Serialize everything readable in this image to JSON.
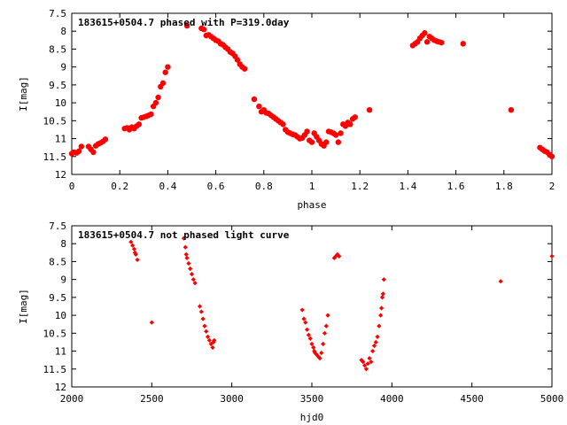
{
  "colors": {
    "marker": "#ff0000",
    "frame": "#000000",
    "background": "#ffffff"
  },
  "chart_data": [
    {
      "type": "scatter",
      "title": "183615+0504.7 phased with P=319.0day",
      "xlabel": "phase",
      "ylabel": "I[mag]",
      "xlim": [
        0,
        2
      ],
      "ylim": [
        12,
        7.5
      ],
      "y_inverted": true,
      "x_ticks": [
        "0",
        "0.2",
        "0.4",
        "0.6",
        "0.8",
        "1",
        "1.2",
        "1.4",
        "1.6",
        "1.8",
        "2"
      ],
      "y_ticks": [
        "7.5",
        "8",
        "8.5",
        "9",
        "9.5",
        "10",
        "10.5",
        "11",
        "11.5",
        "12"
      ],
      "grid": false,
      "legend": "none",
      "marker": "filled-circle-large",
      "series": [
        {
          "points": [
            [
              0.0,
              11.42
            ],
            [
              0.01,
              11.38
            ],
            [
              0.02,
              11.4
            ],
            [
              0.03,
              11.35
            ],
            [
              0.04,
              11.22
            ],
            [
              0.07,
              11.22
            ],
            [
              0.08,
              11.3
            ],
            [
              0.09,
              11.38
            ],
            [
              0.1,
              11.2
            ],
            [
              0.11,
              11.15
            ],
            [
              0.12,
              11.12
            ],
            [
              0.13,
              11.08
            ],
            [
              0.14,
              11.02
            ],
            [
              0.22,
              10.72
            ],
            [
              0.23,
              10.7
            ],
            [
              0.24,
              10.75
            ],
            [
              0.25,
              10.68
            ],
            [
              0.26,
              10.72
            ],
            [
              0.27,
              10.65
            ],
            [
              0.28,
              10.6
            ],
            [
              0.29,
              10.42
            ],
            [
              0.3,
              10.4
            ],
            [
              0.31,
              10.38
            ],
            [
              0.32,
              10.35
            ],
            [
              0.33,
              10.32
            ],
            [
              0.34,
              10.1
            ],
            [
              0.35,
              10.0
            ],
            [
              0.36,
              9.85
            ],
            [
              0.37,
              9.55
            ],
            [
              0.38,
              9.45
            ],
            [
              0.39,
              9.15
            ],
            [
              0.4,
              9.0
            ],
            [
              0.48,
              7.85
            ],
            [
              0.54,
              7.92
            ],
            [
              0.55,
              7.95
            ],
            [
              0.56,
              8.12
            ],
            [
              0.57,
              8.1
            ],
            [
              0.58,
              8.15
            ],
            [
              0.59,
              8.2
            ],
            [
              0.6,
              8.25
            ],
            [
              0.61,
              8.28
            ],
            [
              0.62,
              8.35
            ],
            [
              0.63,
              8.38
            ],
            [
              0.64,
              8.45
            ],
            [
              0.65,
              8.5
            ],
            [
              0.66,
              8.58
            ],
            [
              0.67,
              8.62
            ],
            [
              0.68,
              8.7
            ],
            [
              0.69,
              8.8
            ],
            [
              0.7,
              8.92
            ],
            [
              0.71,
              9.0
            ],
            [
              0.72,
              9.05
            ],
            [
              0.76,
              9.9
            ],
            [
              0.78,
              10.1
            ],
            [
              0.79,
              10.25
            ],
            [
              0.8,
              10.2
            ],
            [
              0.81,
              10.28
            ],
            [
              0.82,
              10.3
            ],
            [
              0.83,
              10.35
            ],
            [
              0.84,
              10.4
            ],
            [
              0.85,
              10.45
            ],
            [
              0.86,
              10.5
            ],
            [
              0.87,
              10.55
            ],
            [
              0.88,
              10.6
            ],
            [
              0.89,
              10.75
            ],
            [
              0.9,
              10.82
            ],
            [
              0.91,
              10.85
            ],
            [
              0.92,
              10.88
            ],
            [
              0.93,
              10.9
            ],
            [
              0.94,
              10.95
            ],
            [
              0.95,
              11.0
            ],
            [
              0.96,
              10.98
            ],
            [
              0.97,
              10.9
            ],
            [
              0.98,
              10.8
            ],
            [
              0.99,
              11.05
            ],
            [
              1.0,
              11.1
            ],
            [
              1.01,
              10.85
            ],
            [
              1.02,
              10.95
            ],
            [
              1.03,
              11.05
            ],
            [
              1.04,
              11.15
            ],
            [
              1.05,
              11.2
            ],
            [
              1.06,
              11.1
            ],
            [
              1.07,
              10.8
            ],
            [
              1.08,
              10.82
            ],
            [
              1.09,
              10.85
            ],
            [
              1.1,
              10.9
            ],
            [
              1.11,
              11.1
            ],
            [
              1.12,
              10.85
            ],
            [
              1.13,
              10.6
            ],
            [
              1.14,
              10.65
            ],
            [
              1.15,
              10.55
            ],
            [
              1.16,
              10.6
            ],
            [
              1.17,
              10.45
            ],
            [
              1.18,
              10.4
            ],
            [
              1.24,
              10.2
            ],
            [
              1.42,
              8.4
            ],
            [
              1.43,
              8.35
            ],
            [
              1.44,
              8.3
            ],
            [
              1.45,
              8.2
            ],
            [
              1.46,
              8.12
            ],
            [
              1.47,
              8.05
            ],
            [
              1.48,
              8.3
            ],
            [
              1.49,
              8.15
            ],
            [
              1.5,
              8.2
            ],
            [
              1.51,
              8.25
            ],
            [
              1.52,
              8.28
            ],
            [
              1.53,
              8.3
            ],
            [
              1.54,
              8.32
            ],
            [
              1.63,
              8.35
            ],
            [
              1.83,
              10.2
            ],
            [
              1.95,
              11.25
            ],
            [
              1.96,
              11.3
            ],
            [
              1.97,
              11.35
            ],
            [
              1.98,
              11.38
            ],
            [
              1.99,
              11.45
            ],
            [
              2.0,
              11.5
            ]
          ]
        }
      ]
    },
    {
      "type": "scatter",
      "title": "183615+0504.7 not phased light curve",
      "xlabel": "hjd0",
      "ylabel": "I[mag]",
      "xlim": [
        2000,
        5000
      ],
      "ylim": [
        12,
        7.5
      ],
      "y_inverted": true,
      "x_ticks": [
        "2000",
        "2500",
        "3000",
        "3500",
        "4000",
        "4500",
        "5000"
      ],
      "y_ticks": [
        "7.5",
        "8",
        "8.5",
        "9",
        "9.5",
        "10",
        "10.5",
        "11",
        "11.5",
        "12"
      ],
      "grid": false,
      "legend": "none",
      "marker": "filled-diamond-small",
      "series": [
        {
          "points": [
            [
              2370,
              7.95
            ],
            [
              2380,
              8.05
            ],
            [
              2390,
              8.15
            ],
            [
              2395,
              8.25
            ],
            [
              2400,
              8.3
            ],
            [
              2410,
              8.45
            ],
            [
              2500,
              10.2
            ],
            [
              2700,
              7.85
            ],
            [
              2710,
              8.1
            ],
            [
              2715,
              8.3
            ],
            [
              2720,
              8.4
            ],
            [
              2730,
              8.55
            ],
            [
              2740,
              8.7
            ],
            [
              2750,
              8.85
            ],
            [
              2760,
              9.0
            ],
            [
              2770,
              9.1
            ],
            [
              2800,
              9.75
            ],
            [
              2810,
              9.9
            ],
            [
              2820,
              10.1
            ],
            [
              2830,
              10.3
            ],
            [
              2840,
              10.45
            ],
            [
              2850,
              10.6
            ],
            [
              2860,
              10.7
            ],
            [
              2870,
              10.8
            ],
            [
              2880,
              10.9
            ],
            [
              2885,
              10.75
            ],
            [
              2890,
              10.7
            ],
            [
              3440,
              9.85
            ],
            [
              3450,
              10.1
            ],
            [
              3460,
              10.2
            ],
            [
              3470,
              10.4
            ],
            [
              3480,
              10.55
            ],
            [
              3490,
              10.65
            ],
            [
              3500,
              10.8
            ],
            [
              3510,
              10.9
            ],
            [
              3515,
              11.0
            ],
            [
              3520,
              11.05
            ],
            [
              3530,
              11.1
            ],
            [
              3540,
              11.15
            ],
            [
              3550,
              11.2
            ],
            [
              3560,
              11.05
            ],
            [
              3570,
              10.8
            ],
            [
              3580,
              10.5
            ],
            [
              3590,
              10.3
            ],
            [
              3600,
              10.0
            ],
            [
              3640,
              8.4
            ],
            [
              3650,
              8.35
            ],
            [
              3660,
              8.3
            ],
            [
              3670,
              8.35
            ],
            [
              3810,
              11.25
            ],
            [
              3820,
              11.3
            ],
            [
              3830,
              11.4
            ],
            [
              3840,
              11.5
            ],
            [
              3850,
              11.35
            ],
            [
              3860,
              11.2
            ],
            [
              3870,
              11.3
            ],
            [
              3880,
              11.0
            ],
            [
              3890,
              10.85
            ],
            [
              3900,
              10.75
            ],
            [
              3910,
              10.6
            ],
            [
              3920,
              10.3
            ],
            [
              3930,
              10.0
            ],
            [
              3935,
              9.8
            ],
            [
              3940,
              9.5
            ],
            [
              3945,
              9.4
            ],
            [
              3950,
              9.0
            ],
            [
              4680,
              9.05
            ],
            [
              5000,
              8.35
            ]
          ]
        }
      ]
    }
  ]
}
